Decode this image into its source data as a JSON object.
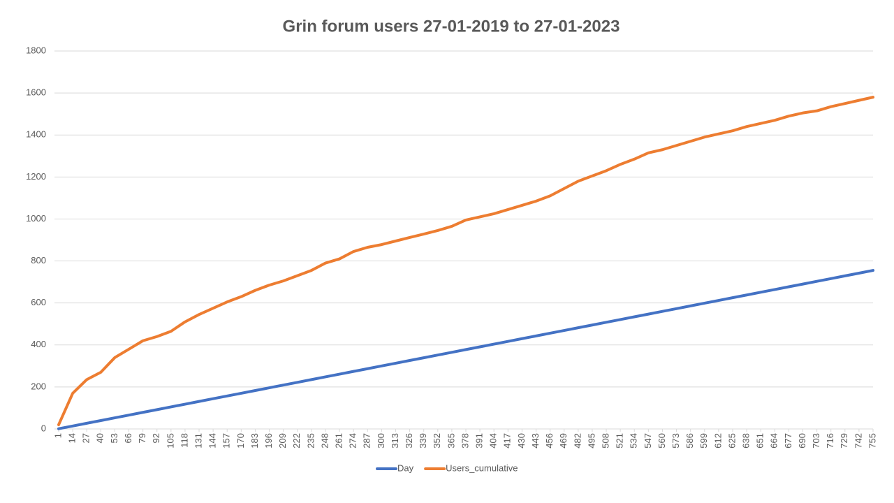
{
  "chart_data": {
    "type": "line",
    "title": "Grin forum users 27-01-2019  to 27-01-2023",
    "x": [
      1,
      14,
      27,
      40,
      53,
      66,
      79,
      92,
      105,
      118,
      131,
      144,
      157,
      170,
      183,
      196,
      209,
      222,
      235,
      248,
      261,
      274,
      287,
      300,
      313,
      326,
      339,
      352,
      365,
      378,
      391,
      404,
      417,
      430,
      443,
      456,
      469,
      482,
      495,
      508,
      521,
      534,
      547,
      560,
      573,
      586,
      599,
      612,
      625,
      638,
      651,
      664,
      677,
      690,
      703,
      716,
      729,
      742,
      755
    ],
    "xlim": [
      1,
      755
    ],
    "xticks": [
      1,
      14,
      27,
      40,
      53,
      66,
      79,
      92,
      105,
      118,
      131,
      144,
      157,
      170,
      183,
      196,
      209,
      222,
      235,
      248,
      261,
      274,
      287,
      300,
      313,
      326,
      339,
      352,
      365,
      378,
      391,
      404,
      417,
      430,
      443,
      456,
      469,
      482,
      495,
      508,
      521,
      534,
      547,
      560,
      573,
      586,
      599,
      612,
      625,
      638,
      651,
      664,
      677,
      690,
      703,
      716,
      729,
      742,
      755
    ],
    "ylim": [
      0,
      1800
    ],
    "yticks": [
      0,
      200,
      400,
      600,
      800,
      1000,
      1200,
      1400,
      1600,
      1800
    ],
    "grid": true,
    "legend": "bottom",
    "series": [
      {
        "name": "Day",
        "color": "#4472c4",
        "values": [
          1,
          14,
          27,
          40,
          53,
          66,
          79,
          92,
          105,
          118,
          131,
          144,
          157,
          170,
          183,
          196,
          209,
          222,
          235,
          248,
          261,
          274,
          287,
          300,
          313,
          326,
          339,
          352,
          365,
          378,
          391,
          404,
          417,
          430,
          443,
          456,
          469,
          482,
          495,
          508,
          521,
          534,
          547,
          560,
          573,
          586,
          599,
          612,
          625,
          638,
          651,
          664,
          677,
          690,
          703,
          716,
          729,
          742,
          755
        ]
      },
      {
        "name": "Users_cumulative",
        "color": "#ed7d31",
        "values": [
          20,
          170,
          235,
          270,
          340,
          380,
          420,
          440,
          465,
          510,
          545,
          575,
          605,
          630,
          660,
          685,
          705,
          730,
          755,
          790,
          810,
          845,
          865,
          878,
          895,
          912,
          928,
          945,
          965,
          995,
          1010,
          1025,
          1045,
          1065,
          1085,
          1110,
          1145,
          1180,
          1205,
          1230,
          1260,
          1285,
          1315,
          1330,
          1350,
          1370,
          1390,
          1405,
          1420,
          1440,
          1455,
          1470,
          1490,
          1505,
          1515,
          1535,
          1550,
          1565,
          1580
        ]
      }
    ]
  }
}
